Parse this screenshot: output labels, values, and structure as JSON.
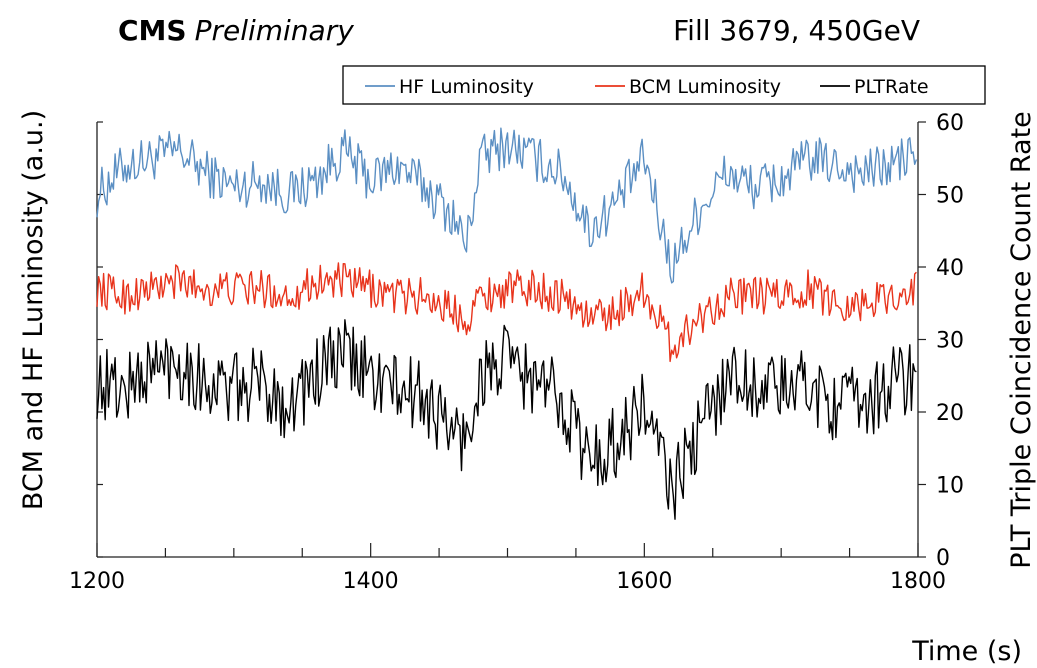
{
  "chart_data": {
    "type": "line",
    "title_bold": "CMS",
    "title_italic": "Preliminary",
    "subtitle": "Fill 3679, 450GeV",
    "xlabel": "Time (s)",
    "ylabel_left": "BCM and HF Luminosity (a.u.)",
    "ylabel_right": "PLT Triple Coincidence Count Rate",
    "xlim": [
      1200,
      1800
    ],
    "ylim_right": [
      0,
      60
    ],
    "x_ticks": [
      1200,
      1400,
      1600,
      1800
    ],
    "y_ticks_right": [
      0,
      10,
      20,
      30,
      40,
      50,
      60
    ],
    "grid": false,
    "legend_placement": "top",
    "series": [
      {
        "name": "HF Luminosity",
        "color": "#5b8fc3",
        "axis": "right",
        "x": [
          1200,
          1220,
          1240,
          1260,
          1280,
          1300,
          1320,
          1340,
          1360,
          1380,
          1400,
          1420,
          1440,
          1460,
          1470,
          1480,
          1500,
          1520,
          1540,
          1560,
          1580,
          1600,
          1620,
          1640,
          1660,
          1680,
          1700,
          1720,
          1740,
          1760,
          1780,
          1800
        ],
        "values": [
          50,
          54,
          55,
          56,
          53,
          51,
          52,
          50,
          52,
          56,
          52,
          54,
          51,
          47,
          43,
          55,
          57,
          55,
          53,
          45,
          49,
          55,
          40,
          48,
          53,
          51,
          52,
          55,
          54,
          53,
          54,
          56
        ]
      },
      {
        "name": "BCM Luminosity",
        "color": "#e8341c",
        "axis": "right",
        "x": [
          1200,
          1220,
          1240,
          1260,
          1280,
          1300,
          1320,
          1340,
          1360,
          1380,
          1400,
          1420,
          1440,
          1460,
          1470,
          1480,
          1500,
          1520,
          1540,
          1560,
          1580,
          1600,
          1620,
          1640,
          1660,
          1680,
          1700,
          1720,
          1740,
          1760,
          1780,
          1800
        ],
        "values": [
          37,
          36,
          37,
          38,
          37,
          37,
          37,
          36,
          38,
          38,
          37,
          36,
          36,
          34,
          33,
          36,
          37,
          37,
          36,
          33,
          34,
          37,
          29,
          33,
          36,
          36,
          36,
          37,
          35,
          35,
          36,
          37
        ]
      },
      {
        "name": "PLTRate",
        "color": "#000000",
        "axis": "right",
        "x": [
          1200,
          1220,
          1240,
          1260,
          1280,
          1300,
          1320,
          1340,
          1360,
          1380,
          1400,
          1420,
          1440,
          1460,
          1470,
          1480,
          1500,
          1520,
          1540,
          1560,
          1580,
          1600,
          1620,
          1640,
          1660,
          1680,
          1700,
          1720,
          1740,
          1760,
          1780,
          1800
        ],
        "values": [
          24,
          23,
          26,
          27,
          24,
          23,
          24,
          21,
          25,
          28,
          25,
          23,
          22,
          17,
          16,
          25,
          27,
          24,
          22,
          13,
          16,
          21,
          9,
          17,
          25,
          24,
          23,
          24,
          21,
          21,
          24,
          25
        ]
      }
    ]
  }
}
